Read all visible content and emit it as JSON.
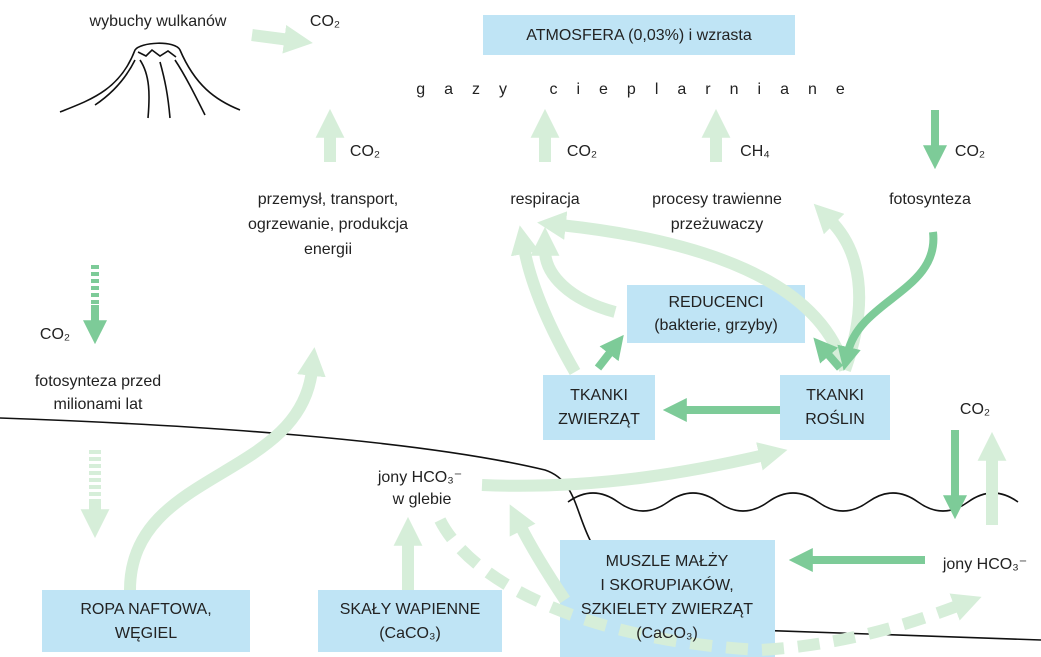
{
  "labels": {
    "volcano": "wybuchy wulkanów",
    "co2_volcano": "CO₂",
    "atmosphere": "ATMOSFERA (0,03%) i wzrasta",
    "greenhouse": "gazy cieplarniane",
    "co2_industry": "CO₂",
    "co2_respiration": "CO₂",
    "ch4": "CH₄",
    "co2_photosynthesis": "CO₂",
    "industry": [
      "przemysł, transport,",
      "ogrzewanie, produkcja",
      "energii"
    ],
    "respiration": "respiracja",
    "digestion": [
      "procesy trawienne",
      "przeżuwaczy"
    ],
    "photosynthesis": "fotosynteza",
    "co2_ancient": "CO₂",
    "ancient_photosynthesis": [
      "fotosynteza przed",
      "milionami lat"
    ],
    "decomposers": [
      "REDUCENCI",
      "(bakterie, grzyby)"
    ],
    "animal_tissue": [
      "TKANKI",
      "ZWIERZĄT"
    ],
    "plant_tissue": [
      "TKANKI",
      "ROŚLIN"
    ],
    "co2_ocean": "CO₂",
    "soil_ions": [
      "jony HCO₃⁻",
      "w glebie"
    ],
    "ocean_ions": "jony HCO₃⁻",
    "fossil_fuels": [
      "ROPA NAFTOWA,",
      "WĘGIEL"
    ],
    "limestone": [
      "SKAŁY WAPIENNE",
      "(CaCO₃)"
    ],
    "shells": [
      "MUSZLE MAŁŻY",
      "I SKORUPIAKÓW,",
      "SZKIELETY ZWIERZĄT",
      "(CaCO₃)"
    ]
  }
}
